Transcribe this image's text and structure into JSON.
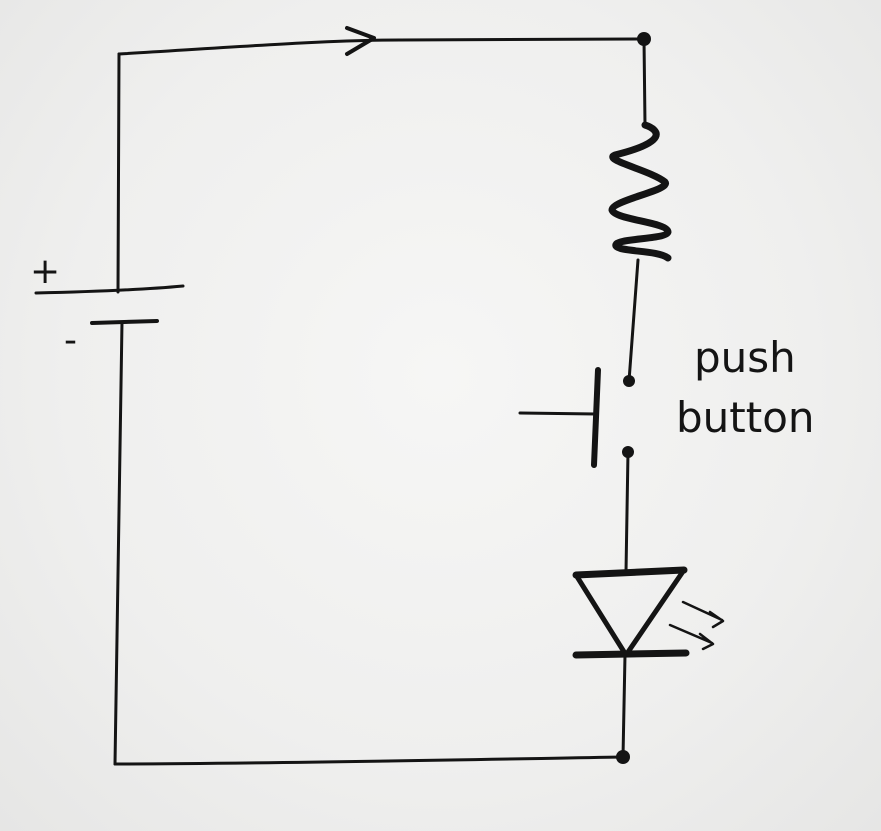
{
  "labels": {
    "battery_plus": "+",
    "battery_minus": "-",
    "switch_line1": "push",
    "switch_line2": "button"
  },
  "colors": {
    "ink": "#141414",
    "paper": "#efefee"
  }
}
